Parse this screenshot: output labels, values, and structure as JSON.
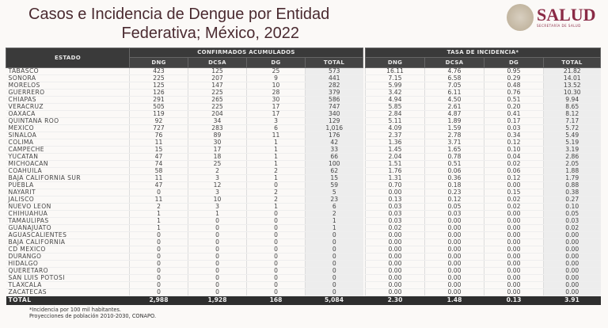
{
  "title": {
    "line1": "Casos e Incidencia de Dengue por Entidad",
    "line2": "Federativa; México, 2022"
  },
  "logo": {
    "brand": "SALUD",
    "subtitle": "SECRETARÍA DE SALUD"
  },
  "table": {
    "estado_header": "ESTADO",
    "group1": "CONFIRMADOS ACUMULADOS",
    "group2": "TASA DE INCIDENCIA*",
    "columns": [
      "DNG",
      "DCSA",
      "DG",
      "TOTAL"
    ],
    "rows": [
      [
        "TABASCO",
        "423",
        "125",
        "25",
        "573",
        "16.11",
        "4.76",
        "0.95",
        "21.82"
      ],
      [
        "SONORA",
        "225",
        "207",
        "9",
        "441",
        "7.15",
        "6.58",
        "0.29",
        "14.01"
      ],
      [
        "MORELOS",
        "125",
        "147",
        "10",
        "282",
        "5.99",
        "7.05",
        "0.48",
        "13.52"
      ],
      [
        "GUERRERO",
        "126",
        "225",
        "28",
        "379",
        "3.42",
        "6.11",
        "0.76",
        "10.30"
      ],
      [
        "CHIAPAS",
        "291",
        "265",
        "30",
        "586",
        "4.94",
        "4.50",
        "0.51",
        "9.94"
      ],
      [
        "VERACRUZ",
        "505",
        "225",
        "17",
        "747",
        "5.85",
        "2.61",
        "0.20",
        "8.65"
      ],
      [
        "OAXACA",
        "119",
        "204",
        "17",
        "340",
        "2.84",
        "4.87",
        "0.41",
        "8.12"
      ],
      [
        "QUINTANA ROO",
        "92",
        "34",
        "3",
        "129",
        "5.11",
        "1.89",
        "0.17",
        "7.17"
      ],
      [
        "MÉXICO",
        "727",
        "283",
        "6",
        "1,016",
        "4.09",
        "1.59",
        "0.03",
        "5.72"
      ],
      [
        "SINALOA",
        "76",
        "89",
        "11",
        "176",
        "2.37",
        "2.78",
        "0.34",
        "5.49"
      ],
      [
        "COLIMA",
        "11",
        "30",
        "1",
        "42",
        "1.36",
        "3.71",
        "0.12",
        "5.19"
      ],
      [
        "CAMPECHE",
        "15",
        "17",
        "1",
        "33",
        "1.45",
        "1.65",
        "0.10",
        "3.19"
      ],
      [
        "YUCATÁN",
        "47",
        "18",
        "1",
        "66",
        "2.04",
        "0.78",
        "0.04",
        "2.86"
      ],
      [
        "MICHOACÁN",
        "74",
        "25",
        "1",
        "100",
        "1.51",
        "0.51",
        "0.02",
        "2.05"
      ],
      [
        "COAHUILA",
        "58",
        "2",
        "2",
        "62",
        "1.76",
        "0.06",
        "0.06",
        "1.88"
      ],
      [
        "BAJA CALIFORNIA SUR",
        "11",
        "3",
        "1",
        "15",
        "1.31",
        "0.36",
        "0.12",
        "1.79"
      ],
      [
        "PUEBLA",
        "47",
        "12",
        "0",
        "59",
        "0.70",
        "0.18",
        "0.00",
        "0.88"
      ],
      [
        "NAYARIT",
        "0",
        "3",
        "2",
        "5",
        "0.00",
        "0.23",
        "0.15",
        "0.38"
      ],
      [
        "JALISCO",
        "11",
        "10",
        "2",
        "23",
        "0.13",
        "0.12",
        "0.02",
        "0.27"
      ],
      [
        "NUEVO LEÓN",
        "2",
        "3",
        "1",
        "6",
        "0.03",
        "0.05",
        "0.02",
        "0.10"
      ],
      [
        "CHIHUAHUA",
        "1",
        "1",
        "0",
        "2",
        "0.03",
        "0.03",
        "0.00",
        "0.05"
      ],
      [
        "TAMAULIPAS",
        "1",
        "0",
        "0",
        "1",
        "0.03",
        "0.00",
        "0.00",
        "0.03"
      ],
      [
        "GUANAJUATO",
        "1",
        "0",
        "0",
        "1",
        "0.02",
        "0.00",
        "0.00",
        "0.02"
      ],
      [
        "AGUASCALIENTES",
        "0",
        "0",
        "0",
        "0",
        "0.00",
        "0.00",
        "0.00",
        "0.00"
      ],
      [
        "BAJA CALIFORNIA",
        "0",
        "0",
        "0",
        "0",
        "0.00",
        "0.00",
        "0.00",
        "0.00"
      ],
      [
        "CD MÉXICO",
        "0",
        "0",
        "0",
        "0",
        "0.00",
        "0.00",
        "0.00",
        "0.00"
      ],
      [
        "DURANGO",
        "0",
        "0",
        "0",
        "0",
        "0.00",
        "0.00",
        "0.00",
        "0.00"
      ],
      [
        "HIDALGO",
        "0",
        "0",
        "0",
        "0",
        "0.00",
        "0.00",
        "0.00",
        "0.00"
      ],
      [
        "QUERÉTARO",
        "0",
        "0",
        "0",
        "0",
        "0.00",
        "0.00",
        "0.00",
        "0.00"
      ],
      [
        "SAN LUIS POTOSÍ",
        "0",
        "0",
        "0",
        "0",
        "0.00",
        "0.00",
        "0.00",
        "0.00"
      ],
      [
        "TLAXCALA",
        "0",
        "0",
        "0",
        "0",
        "0.00",
        "0.00",
        "0.00",
        "0.00"
      ],
      [
        "ZACATECAS",
        "0",
        "0",
        "0",
        "0",
        "0.00",
        "0.00",
        "0.00",
        "0.00"
      ]
    ],
    "total": [
      "TOTAL",
      "2,988",
      "1,928",
      "168",
      "5,084",
      "2.30",
      "1.48",
      "0.13",
      "3.91"
    ]
  },
  "footnotes": [
    "*Incidencia por 100 mil habitantes.",
    "Proyecciones de población 2010-2030,  CONAPO."
  ]
}
